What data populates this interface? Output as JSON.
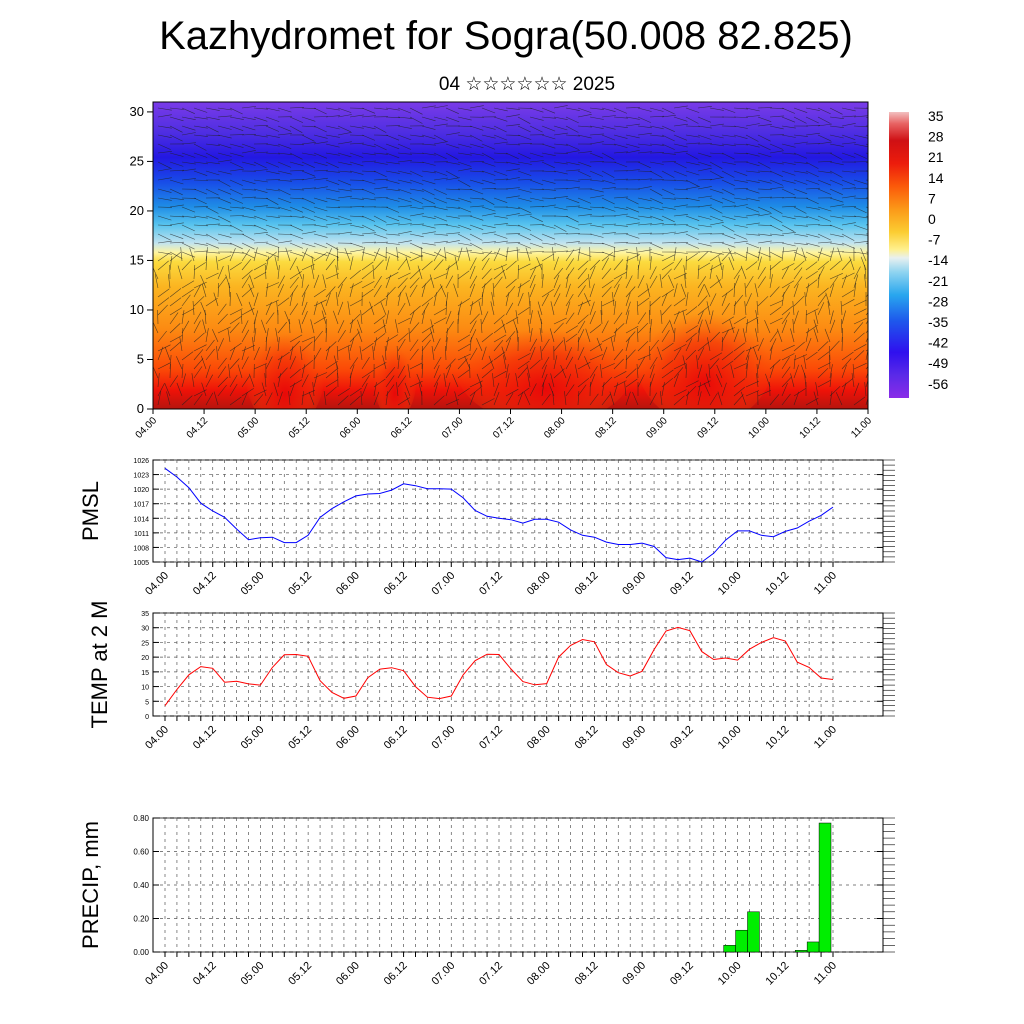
{
  "title": "Kazhydromet for Sogra(50.008 82.825)",
  "subtitle": "04 ☆☆☆☆☆☆ 2025",
  "time_labels": [
    "04.00",
    "04.12",
    "05.00",
    "05.12",
    "06.00",
    "06.12",
    "07.00",
    "07.12",
    "08.00",
    "08.12",
    "09.00",
    "09.12",
    "10.00",
    "10.12",
    "11.00"
  ],
  "colors": {
    "pmsl": "#0000ff",
    "temp": "#ff0000",
    "precip_fill": "#00ee00",
    "precip_edge": "#000000"
  },
  "chart_data": [
    {
      "type": "heatmap",
      "title": "",
      "xlabel": "",
      "ylabel": "",
      "x": [
        "04.00",
        "04.12",
        "05.00",
        "05.12",
        "06.00",
        "06.12",
        "07.00",
        "07.12",
        "08.00",
        "08.12",
        "09.00",
        "09.12",
        "10.00",
        "10.12",
        "11.00"
      ],
      "ylim": [
        0,
        31
      ],
      "yticks": [
        0,
        5,
        10,
        15,
        20,
        25,
        30
      ],
      "colorbar_ticks": [
        35,
        28,
        21,
        14,
        7,
        0,
        -7,
        -14,
        -21,
        -28,
        -35,
        -42,
        -49,
        -56
      ],
      "overlay": "wind barbs"
    },
    {
      "type": "line",
      "ylabel": "PMSL",
      "ylim": [
        1005,
        1026
      ],
      "yticks": [
        1005,
        1008,
        1011,
        1014,
        1017,
        1020,
        1023,
        1026
      ],
      "x": [
        "04.00",
        "04.03",
        "04.06",
        "04.09",
        "04.12",
        "04.15",
        "04.18",
        "04.21",
        "05.00",
        "05.03",
        "05.06",
        "05.09",
        "05.12",
        "05.15",
        "05.18",
        "05.21",
        "06.00",
        "06.03",
        "06.06",
        "06.09",
        "06.12",
        "06.15",
        "06.18",
        "06.21",
        "07.00",
        "07.03",
        "07.06",
        "07.09",
        "07.12",
        "07.15",
        "07.18",
        "07.21",
        "08.00",
        "08.03",
        "08.06",
        "08.09",
        "08.12",
        "08.15",
        "08.18",
        "08.21",
        "09.00",
        "09.03",
        "09.06",
        "09.09",
        "09.12",
        "09.15",
        "09.18",
        "09.21",
        "10.00",
        "10.03",
        "10.06",
        "10.09",
        "10.12",
        "10.15",
        "10.18",
        "10.21",
        "11.00"
      ],
      "series": [
        {
          "values": [
            1024.3,
            1022.5,
            1020.3,
            1017.1,
            1015.5,
            1014.2,
            1011.8,
            1009.6,
            1010.0,
            1010.1,
            1009.0,
            1009.0,
            1010.5,
            1014.2,
            1016.0,
            1017.4,
            1018.6,
            1019.0,
            1019.1,
            1019.8,
            1021.1,
            1020.7,
            1020.1,
            1020.1,
            1020.0,
            1018.2,
            1015.6,
            1014.4,
            1014.0,
            1013.7,
            1013.0,
            1013.8,
            1013.8,
            1013.2,
            1011.6,
            1010.5,
            1010.1,
            1009.1,
            1008.6,
            1008.6,
            1008.9,
            1008.2,
            1005.9,
            1005.5,
            1005.8,
            1005.0,
            1006.8,
            1009.5,
            1011.4,
            1011.4,
            1010.5,
            1010.2,
            1011.3,
            1012.0,
            1013.4,
            1014.6,
            1016.3
          ]
        }
      ]
    },
    {
      "type": "line",
      "ylabel": "TEMP at 2 M",
      "ylim": [
        0,
        35
      ],
      "yticks": [
        0,
        5,
        10,
        15,
        20,
        25,
        30,
        35
      ],
      "x": [
        "04.00",
        "04.03",
        "04.06",
        "04.09",
        "04.12",
        "04.15",
        "04.18",
        "04.21",
        "05.00",
        "05.03",
        "05.06",
        "05.09",
        "05.12",
        "05.15",
        "05.18",
        "05.21",
        "06.00",
        "06.03",
        "06.06",
        "06.09",
        "06.12",
        "06.15",
        "06.18",
        "06.21",
        "07.00",
        "07.03",
        "07.06",
        "07.09",
        "07.12",
        "07.15",
        "07.18",
        "07.21",
        "08.00",
        "08.03",
        "08.06",
        "08.09",
        "08.12",
        "08.15",
        "08.18",
        "08.21",
        "09.00",
        "09.03",
        "09.06",
        "09.09",
        "09.12",
        "09.15",
        "09.18",
        "09.21",
        "10.00",
        "10.03",
        "10.06",
        "10.09",
        "10.12",
        "10.15",
        "10.18",
        "10.21",
        "11.00"
      ],
      "series": [
        {
          "values": [
            3.5,
            9.0,
            14.0,
            16.8,
            16.2,
            11.5,
            11.8,
            10.9,
            10.5,
            16.5,
            20.8,
            20.9,
            20.3,
            12.0,
            8.0,
            6.0,
            6.8,
            13.0,
            15.9,
            16.4,
            15.4,
            10.0,
            6.4,
            5.9,
            6.8,
            14.0,
            18.8,
            21.0,
            20.9,
            16.0,
            11.7,
            10.6,
            11.0,
            20.0,
            24.0,
            26.0,
            25.2,
            17.5,
            14.7,
            13.6,
            15.2,
            22.6,
            28.9,
            30.1,
            29.0,
            21.9,
            19.2,
            19.7,
            19.0,
            22.7,
            25.0,
            26.6,
            25.5,
            18.3,
            16.5,
            12.9,
            12.4
          ]
        }
      ]
    },
    {
      "type": "bar",
      "ylabel": "PRECIP, mm",
      "ylim": [
        0,
        0.8
      ],
      "yticks": [
        "0.00",
        "0.20",
        "0.40",
        "0.60",
        "0.80"
      ],
      "categories": [
        "09.21",
        "10.00",
        "10.03",
        "10.06",
        "10.09",
        "10.12",
        "10.15",
        "10.18",
        "10.21"
      ],
      "values": [
        0.04,
        0.13,
        0.24,
        0.0,
        0.0,
        0.0,
        0.01,
        0.06,
        0.77
      ]
    }
  ]
}
